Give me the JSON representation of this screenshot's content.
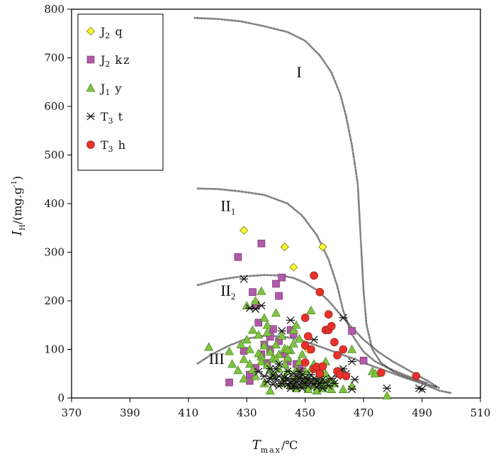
{
  "chart_data": {
    "type": "scatter",
    "xlim": [
      370,
      510
    ],
    "ylim": [
      0,
      800
    ],
    "xticks": [
      370,
      390,
      410,
      430,
      450,
      470,
      490,
      510
    ],
    "yticks": [
      0,
      100,
      200,
      300,
      400,
      500,
      600,
      700,
      800
    ],
    "xlabel": {
      "main": "T",
      "sub": "max",
      "unit": "/℃"
    },
    "ylabel": {
      "main": "I",
      "sub": "H",
      "unit": "/(mg.g",
      "sup": "-1",
      "close": ")"
    },
    "legend_position": "top-left",
    "series": [
      {
        "name": "J",
        "sub": "2",
        "rest": "q",
        "marker": "diamond",
        "color": "#ffff33",
        "edge": "#7a7a00",
        "points": [
          [
            429,
            345
          ],
          [
            443,
            311
          ],
          [
            456,
            311
          ],
          [
            446,
            269
          ],
          [
            451,
            100
          ]
        ]
      },
      {
        "name": "J",
        "sub": "2",
        "rest": "kz",
        "marker": "square",
        "color": "#b05aa8",
        "edge": "#6a2a66",
        "points": [
          [
            424,
            32
          ],
          [
            427,
            290
          ],
          [
            429,
            97
          ],
          [
            431,
            48
          ],
          [
            432,
            218
          ],
          [
            431,
            35
          ],
          [
            433,
            62
          ],
          [
            434,
            155
          ],
          [
            435,
            318
          ],
          [
            436,
            110
          ],
          [
            435,
            90
          ],
          [
            438,
            100
          ],
          [
            438,
            126
          ],
          [
            439,
            142
          ],
          [
            440,
            235
          ],
          [
            441,
            210
          ],
          [
            442,
            248
          ],
          [
            443,
            91
          ],
          [
            444,
            75
          ],
          [
            445,
            140
          ],
          [
            446,
            132
          ],
          [
            447,
            70
          ],
          [
            448,
            60
          ],
          [
            449,
            55
          ],
          [
            466,
            138
          ],
          [
            470,
            77
          ],
          [
            433,
            192
          ],
          [
            437,
            72
          ],
          [
            441,
            117
          ]
        ]
      },
      {
        "name": "J",
        "sub": "1",
        "rest": "y",
        "marker": "triangle",
        "color": "#7fc241",
        "edge": "#3e7a1a",
        "points": [
          [
            417,
            105
          ],
          [
            424,
            96
          ],
          [
            425,
            70
          ],
          [
            427,
            57
          ],
          [
            428,
            110
          ],
          [
            429,
            40
          ],
          [
            429,
            80
          ],
          [
            430,
            190
          ],
          [
            430,
            120
          ],
          [
            431,
            100
          ],
          [
            431,
            70
          ],
          [
            432,
            140
          ],
          [
            432,
            58
          ],
          [
            433,
            200
          ],
          [
            433,
            45
          ],
          [
            434,
            130
          ],
          [
            434,
            92
          ],
          [
            435,
            85
          ],
          [
            435,
            75
          ],
          [
            435,
            220
          ],
          [
            436,
            108
          ],
          [
            436,
            30
          ],
          [
            437,
            68
          ],
          [
            437,
            150
          ],
          [
            437,
            135
          ],
          [
            438,
            95
          ],
          [
            438,
            58
          ],
          [
            438,
            15
          ],
          [
            439,
            82
          ],
          [
            439,
            48
          ],
          [
            440,
            110
          ],
          [
            440,
            175
          ],
          [
            441,
            60
          ],
          [
            441,
            90
          ],
          [
            442,
            30
          ],
          [
            442,
            128
          ],
          [
            443,
            70
          ],
          [
            443,
            102
          ],
          [
            443,
            42
          ],
          [
            444,
            83
          ],
          [
            444,
            55
          ],
          [
            445,
            98
          ],
          [
            445,
            25
          ],
          [
            446,
            38
          ],
          [
            446,
            112
          ],
          [
            446,
            140
          ],
          [
            447,
            150
          ],
          [
            447,
            60
          ],
          [
            447,
            20
          ],
          [
            448,
            75
          ],
          [
            448,
            45
          ],
          [
            449,
            90
          ],
          [
            449,
            28
          ],
          [
            450,
            30
          ],
          [
            450,
            55
          ],
          [
            451,
            40
          ],
          [
            451,
            18
          ],
          [
            452,
            180
          ],
          [
            452,
            60
          ],
          [
            453,
            25
          ],
          [
            453,
            70
          ],
          [
            454,
            35
          ],
          [
            454,
            15
          ],
          [
            455,
            45
          ],
          [
            455,
            60
          ],
          [
            456,
            20
          ],
          [
            456,
            30
          ],
          [
            457,
            50
          ],
          [
            457,
            75
          ],
          [
            458,
            25
          ],
          [
            458,
            40
          ],
          [
            459,
            18
          ],
          [
            460,
            30
          ],
          [
            462,
            55
          ],
          [
            463,
            18
          ],
          [
            466,
            100
          ],
          [
            466,
            25
          ],
          [
            473,
            55
          ],
          [
            474,
            50
          ],
          [
            478,
            5
          ],
          [
            436,
            165
          ],
          [
            444,
            100
          ],
          [
            448,
            122
          ],
          [
            440,
            80
          ]
        ]
      },
      {
        "name": "T",
        "sub": "3",
        "rest": "t",
        "marker": "asterisk",
        "color": "#111111",
        "edge": "#111111",
        "points": [
          [
            429,
            245
          ],
          [
            431,
            185
          ],
          [
            433,
            183
          ],
          [
            434,
            54
          ],
          [
            435,
            190
          ],
          [
            436,
            45
          ],
          [
            437,
            33
          ],
          [
            438,
            40
          ],
          [
            438,
            60
          ],
          [
            439,
            28
          ],
          [
            439,
            48
          ],
          [
            440,
            38
          ],
          [
            440,
            60
          ],
          [
            441,
            25
          ],
          [
            441,
            45
          ],
          [
            441,
            70
          ],
          [
            442,
            30
          ],
          [
            442,
            138
          ],
          [
            443,
            42
          ],
          [
            443,
            35
          ],
          [
            444,
            28
          ],
          [
            444,
            55
          ],
          [
            444,
            40
          ],
          [
            445,
            30
          ],
          [
            445,
            20
          ],
          [
            446,
            38
          ],
          [
            446,
            50
          ],
          [
            446,
            25
          ],
          [
            447,
            33
          ],
          [
            447,
            45
          ],
          [
            447,
            22
          ],
          [
            448,
            40
          ],
          [
            448,
            28
          ],
          [
            448,
            55
          ],
          [
            449,
            35
          ],
          [
            449,
            48
          ],
          [
            449,
            20
          ],
          [
            450,
            30
          ],
          [
            450,
            42
          ],
          [
            451,
            25
          ],
          [
            451,
            38
          ],
          [
            452,
            32
          ],
          [
            452,
            48
          ],
          [
            453,
            28
          ],
          [
            453,
            40
          ],
          [
            454,
            35
          ],
          [
            454,
            22
          ],
          [
            455,
            45
          ],
          [
            455,
            30
          ],
          [
            456,
            38
          ],
          [
            456,
            20
          ],
          [
            457,
            32
          ],
          [
            458,
            25
          ],
          [
            459,
            40
          ],
          [
            460,
            30
          ],
          [
            461,
            45
          ],
          [
            462,
            55
          ],
          [
            463,
            165
          ],
          [
            463,
            60
          ],
          [
            464,
            50
          ],
          [
            466,
            18
          ],
          [
            466,
            75
          ],
          [
            467,
            38
          ],
          [
            478,
            20
          ],
          [
            489,
            20
          ],
          [
            490,
            18
          ],
          [
            453,
            120
          ],
          [
            445,
            160
          ]
        ]
      },
      {
        "name": "T",
        "sub": "3",
        "rest": "h",
        "marker": "circle",
        "color": "#e8312b",
        "edge": "#8a1a14",
        "points": [
          [
            450,
            108
          ],
          [
            450,
            73
          ],
          [
            451,
            127
          ],
          [
            453,
            252
          ],
          [
            453,
            60
          ],
          [
            454,
            64
          ],
          [
            455,
            218
          ],
          [
            455,
            50
          ],
          [
            456,
            65
          ],
          [
            457,
            140
          ],
          [
            458,
            140
          ],
          [
            458,
            172
          ],
          [
            459,
            148
          ],
          [
            460,
            115
          ],
          [
            461,
            88
          ],
          [
            461,
            55
          ],
          [
            462,
            48
          ],
          [
            463,
            100
          ],
          [
            464,
            45
          ],
          [
            452,
            100
          ],
          [
            476,
            52
          ],
          [
            488,
            45
          ],
          [
            450,
            165
          ]
        ]
      }
    ],
    "curves": [
      {
        "label": "I",
        "sub": "",
        "label_at": [
          447,
          660
        ],
        "points": [
          [
            412,
            782
          ],
          [
            420,
            780
          ],
          [
            428,
            775
          ],
          [
            436,
            765
          ],
          [
            444,
            753
          ],
          [
            450,
            735
          ],
          [
            455,
            705
          ],
          [
            459,
            670
          ],
          [
            462,
            625
          ],
          [
            464,
            580
          ],
          [
            466,
            520
          ],
          [
            468,
            440
          ],
          [
            469,
            330
          ],
          [
            470,
            220
          ],
          [
            471,
            150
          ],
          [
            473,
            100
          ],
          [
            476,
            72
          ],
          [
            480,
            55
          ],
          [
            485,
            42
          ],
          [
            490,
            32
          ],
          [
            495,
            22
          ]
        ]
      },
      {
        "label": "II",
        "sub": "1",
        "label_at": [
          421,
          385
        ],
        "points": [
          [
            413,
            431
          ],
          [
            420,
            430
          ],
          [
            428,
            425
          ],
          [
            436,
            418
          ],
          [
            444,
            400
          ],
          [
            449,
            375
          ],
          [
            454,
            335
          ],
          [
            458,
            285
          ],
          [
            461,
            230
          ],
          [
            463,
            180
          ],
          [
            466,
            130
          ],
          [
            470,
            95
          ],
          [
            474,
            75
          ],
          [
            479,
            60
          ],
          [
            485,
            45
          ],
          [
            492,
            30
          ]
        ]
      },
      {
        "label": "II",
        "sub": "2",
        "label_at": [
          421,
          210
        ],
        "points": [
          [
            413,
            232
          ],
          [
            420,
            243
          ],
          [
            428,
            250
          ],
          [
            436,
            253
          ],
          [
            442,
            252
          ],
          [
            446,
            247
          ],
          [
            450,
            237
          ],
          [
            454,
            222
          ],
          [
            458,
            200
          ],
          [
            462,
            172
          ],
          [
            466,
            145
          ],
          [
            470,
            120
          ],
          [
            475,
            95
          ],
          [
            480,
            75
          ],
          [
            486,
            55
          ],
          [
            492,
            35
          ],
          [
            496,
            20
          ]
        ]
      },
      {
        "label": "III",
        "sub": "",
        "label_at": [
          417,
          70
        ],
        "points": [
          [
            413,
            70
          ],
          [
            418,
            90
          ],
          [
            424,
            108
          ],
          [
            430,
            122
          ],
          [
            436,
            128
          ],
          [
            442,
            127
          ],
          [
            448,
            120
          ],
          [
            454,
            108
          ],
          [
            460,
            95
          ],
          [
            466,
            82
          ],
          [
            472,
            68
          ],
          [
            478,
            55
          ],
          [
            484,
            42
          ],
          [
            490,
            30
          ],
          [
            496,
            15
          ],
          [
            500,
            10
          ]
        ]
      }
    ]
  }
}
